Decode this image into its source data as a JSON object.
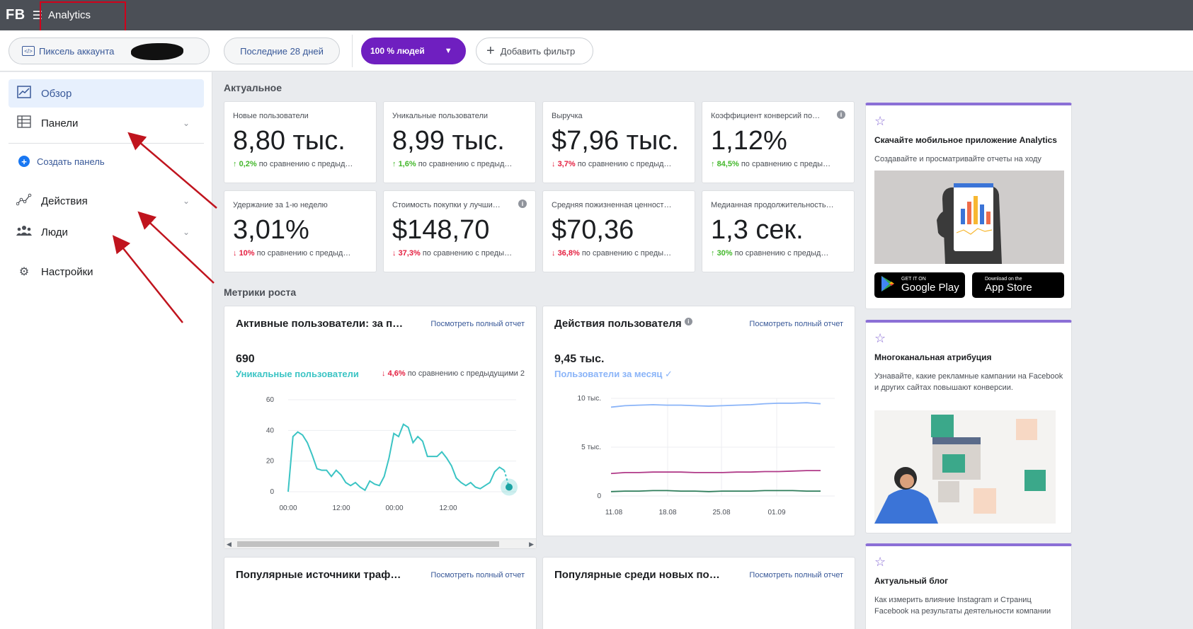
{
  "topbar": {
    "brand": "FB",
    "menu_icon": "hamburger-icon",
    "title": "Analytics"
  },
  "filters": {
    "pixel_label": "Пиксель аккаунта",
    "period_label": "Последние 28 дней",
    "people_label": "100 % людей",
    "add_filter_label": "Добавить фильтр"
  },
  "sidebar": {
    "items": [
      {
        "label": "Обзор",
        "icon": "overview-chart-icon"
      },
      {
        "label": "Панели",
        "icon": "dashboards-icon"
      },
      {
        "label": "Действия",
        "icon": "activity-icon"
      },
      {
        "label": "Люди",
        "icon": "people-icon"
      },
      {
        "label": "Настройки",
        "icon": "gear-icon"
      }
    ],
    "create_label": "Создать панель"
  },
  "main": {
    "current_title": "Актуальное",
    "growth_title": "Метрики роста",
    "kpis": [
      {
        "label": "Новые пользователи",
        "value": "8,80 тыс.",
        "change": "0,2%",
        "dir": "up",
        "compare": "по сравнению с предыд…"
      },
      {
        "label": "Уникальные пользователи",
        "value": "8,99 тыс.",
        "change": "1,6%",
        "dir": "up",
        "compare": "по сравнению с предыд…"
      },
      {
        "label": "Выручка",
        "value": "$7,96 тыс.",
        "change": "3,7%",
        "dir": "down",
        "compare": "по сравнению с предыд…"
      },
      {
        "label": "Коэффициент конверсий по…",
        "value": "1,12%",
        "change": "84,5%",
        "dir": "up",
        "compare": "по сравнению с преды…"
      },
      {
        "label": "Удержание за 1-ю неделю",
        "value": "3,01%",
        "change": "10%",
        "dir": "down",
        "compare": "по сравнению с предыд…"
      },
      {
        "label": "Стоимость покупки у лучши…",
        "value": "$148,70",
        "change": "37,3%",
        "dir": "down",
        "compare": "по сравнению с преды…"
      },
      {
        "label": "Средняя пожизненная ценност…",
        "value": "$70,36",
        "change": "36,8%",
        "dir": "down",
        "compare": "по сравнению с преды…"
      },
      {
        "label": "Медианная продолжительность…",
        "value": "1,3 сек.",
        "change": "30%",
        "dir": "up",
        "compare": "по сравнению с предыд…"
      }
    ],
    "active_users_card": {
      "title": "Активные пользователи: за п…",
      "link": "Посмотреть полный отчет",
      "value": "690",
      "series_label": "Уникальные пользователи",
      "change": "4,6%",
      "compare": "по сравнению с предыдущими 2"
    },
    "actions_card": {
      "title": "Действия пользователя",
      "link": "Посмотреть полный отчет",
      "value": "9,45 тыс.",
      "series_label": "Пользователи за месяц ✓"
    },
    "traffic_card": {
      "title": "Популярные источники траф…",
      "link": "Посмотреть полный отчет"
    },
    "new_users_card": {
      "title": "Популярные среди новых по…",
      "link": "Посмотреть полный отчет"
    }
  },
  "right": {
    "app": {
      "title": "Скачайте мобильное приложение Analytics",
      "text": "Создавайте и просматривайте отчеты на ходу",
      "google_small": "GET IT ON",
      "google_big": "Google Play",
      "apple_small": "Download on the",
      "apple_big": "App Store"
    },
    "attribution": {
      "title": "Многоканальная атрибуция",
      "text": "Узнавайте, какие рекламные кампании на Facebook и других сайтах повышают конверсии."
    },
    "blog": {
      "title": "Актуальный блог",
      "text": "Как измерить влияние Instagram и Страниц Facebook на результаты деятельности компании"
    }
  },
  "chart_data": [
    {
      "type": "line",
      "title": "Активные пользователи: за п…",
      "series": [
        {
          "name": "Уникальные пользователи",
          "color": "#3bc4c4",
          "values": [
            0,
            36,
            39,
            37,
            32,
            24,
            15,
            14,
            14,
            10,
            14,
            11,
            6,
            4,
            6,
            3,
            1,
            7,
            5,
            4,
            10,
            22,
            38,
            36,
            44,
            42,
            32,
            36,
            33,
            23,
            23,
            23,
            26,
            22,
            17,
            9,
            6,
            4,
            6,
            3,
            2,
            4,
            6,
            13,
            16,
            14,
            3
          ]
        }
      ],
      "x_ticks": [
        "00:00",
        "12:00",
        "00:00",
        "12:00"
      ],
      "ylim": [
        0,
        60
      ],
      "y_ticks": [
        0,
        20,
        40,
        60
      ]
    },
    {
      "type": "line",
      "title": "Действия пользователя",
      "series": [
        {
          "name": "Пользователи за месяц",
          "color": "#8ab4f8",
          "values": [
            9.1,
            9.25,
            9.3,
            9.35,
            9.3,
            9.3,
            9.25,
            9.2,
            9.25,
            9.3,
            9.35,
            9.45,
            9.5,
            9.5,
            9.55,
            9.45
          ]
        },
        {
          "name": "",
          "color": "#b03a88",
          "values": [
            2.3,
            2.4,
            2.4,
            2.45,
            2.45,
            2.45,
            2.4,
            2.4,
            2.4,
            2.45,
            2.45,
            2.5,
            2.5,
            2.55,
            2.6,
            2.6
          ]
        },
        {
          "name": "",
          "color": "#2e7d5b",
          "values": [
            0.45,
            0.5,
            0.5,
            0.55,
            0.55,
            0.5,
            0.5,
            0.45,
            0.5,
            0.5,
            0.5,
            0.55,
            0.55,
            0.55,
            0.5,
            0.5
          ]
        }
      ],
      "x_ticks": [
        "11.08",
        "18.08",
        "25.08",
        "01.09"
      ],
      "y_ticks": [
        "0",
        "5 тыс.",
        "10 тыс."
      ],
      "ylim": [
        0,
        10
      ]
    }
  ],
  "colors": {
    "accent": "#6f1fc0",
    "link": "#385898",
    "up": "#42b72a",
    "down": "#e41e3f",
    "right_card_border": "#8b6fd6",
    "annotation": "#d0021b"
  }
}
